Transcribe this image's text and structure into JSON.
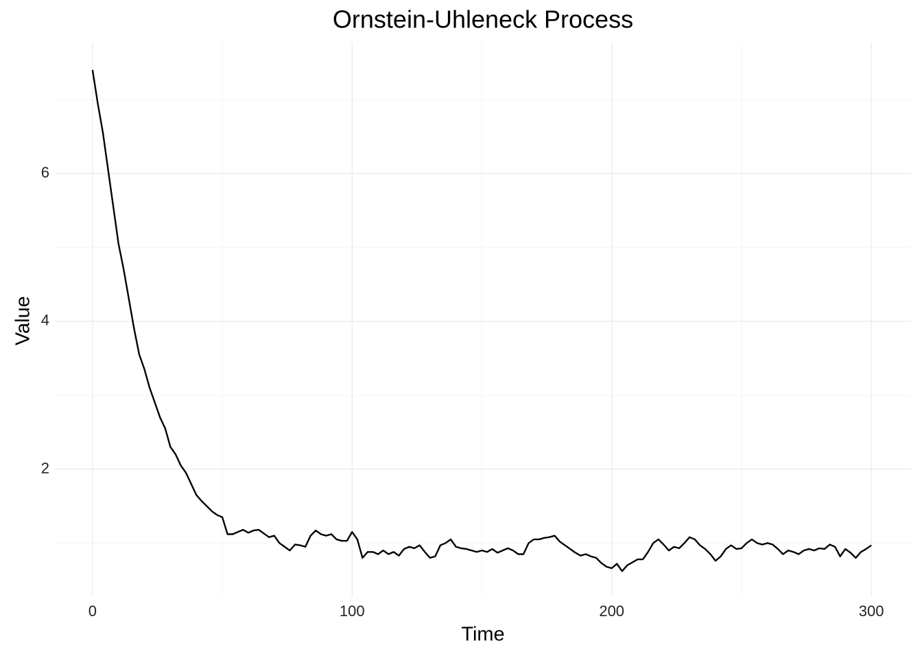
{
  "chart_data": {
    "type": "line",
    "title": "Ornstein-Uhleneck Process",
    "x_label": "Time",
    "y_label": "Value",
    "x": [
      0,
      2,
      4,
      6,
      8,
      10,
      12,
      14,
      16,
      18,
      20,
      22,
      24,
      26,
      28,
      30,
      32,
      34,
      36,
      38,
      40,
      42,
      44,
      46,
      48,
      50,
      52,
      54,
      56,
      58,
      60,
      62,
      64,
      66,
      68,
      70,
      72,
      74,
      76,
      78,
      80,
      82,
      84,
      86,
      88,
      90,
      92,
      94,
      96,
      98,
      100,
      102,
      104,
      106,
      108,
      110,
      112,
      114,
      116,
      118,
      120,
      122,
      124,
      126,
      128,
      130,
      132,
      134,
      136,
      138,
      140,
      142,
      144,
      146,
      148,
      150,
      152,
      154,
      156,
      158,
      160,
      162,
      164,
      166,
      168,
      170,
      172,
      174,
      176,
      178,
      180,
      182,
      184,
      186,
      188,
      190,
      192,
      194,
      196,
      198,
      200,
      202,
      204,
      206,
      208,
      210,
      212,
      214,
      216,
      218,
      220,
      222,
      224,
      226,
      228,
      230,
      232,
      234,
      236,
      238,
      240,
      242,
      244,
      246,
      248,
      250,
      252,
      254,
      256,
      258,
      260,
      262,
      264,
      266,
      268,
      270,
      272,
      274,
      276,
      278,
      280,
      282,
      284,
      286,
      288,
      290,
      292,
      294,
      296,
      298,
      300
    ],
    "series": [
      {
        "name": "Value",
        "color": "#000000",
        "values": [
          7.4,
          6.95,
          6.55,
          6.05,
          5.55,
          5.05,
          4.7,
          4.3,
          3.9,
          3.55,
          3.35,
          3.1,
          2.9,
          2.7,
          2.55,
          2.3,
          2.2,
          2.05,
          1.95,
          1.8,
          1.65,
          1.57,
          1.5,
          1.43,
          1.38,
          1.35,
          1.12,
          1.12,
          1.15,
          1.18,
          1.14,
          1.17,
          1.18,
          1.13,
          1.08,
          1.1,
          1.0,
          0.95,
          0.9,
          0.98,
          0.97,
          0.95,
          1.1,
          1.17,
          1.12,
          1.1,
          1.12,
          1.05,
          1.03,
          1.03,
          1.15,
          1.05,
          0.8,
          0.88,
          0.88,
          0.85,
          0.9,
          0.85,
          0.88,
          0.83,
          0.92,
          0.95,
          0.93,
          0.97,
          0.88,
          0.8,
          0.82,
          0.97,
          1.0,
          1.05,
          0.95,
          0.93,
          0.92,
          0.9,
          0.88,
          0.9,
          0.88,
          0.92,
          0.87,
          0.9,
          0.93,
          0.9,
          0.85,
          0.85,
          1.0,
          1.05,
          1.05,
          1.07,
          1.08,
          1.1,
          1.02,
          0.97,
          0.92,
          0.87,
          0.83,
          0.85,
          0.82,
          0.8,
          0.73,
          0.68,
          0.66,
          0.72,
          0.62,
          0.7,
          0.74,
          0.78,
          0.78,
          0.88,
          1.0,
          1.05,
          0.98,
          0.9,
          0.95,
          0.93,
          1.0,
          1.08,
          1.05,
          0.97,
          0.92,
          0.85,
          0.76,
          0.82,
          0.92,
          0.97,
          0.92,
          0.93,
          1.0,
          1.05,
          1.0,
          0.98,
          1.0,
          0.98,
          0.92,
          0.85,
          0.9,
          0.88,
          0.85,
          0.9,
          0.92,
          0.9,
          0.93,
          0.92,
          0.98,
          0.95,
          0.82,
          0.92,
          0.87,
          0.8,
          0.88,
          0.92,
          0.97
        ]
      }
    ],
    "xlim": [
      -14.5,
      315.3
    ],
    "ylim": [
      0.28,
      7.77
    ],
    "xticks": [
      0,
      100,
      200,
      300
    ],
    "yticks": [
      2,
      4,
      6
    ],
    "minor_xticks": [
      50,
      150,
      250
    ],
    "minor_yticks": [
      1,
      3,
      5,
      7
    ],
    "grid": true
  }
}
